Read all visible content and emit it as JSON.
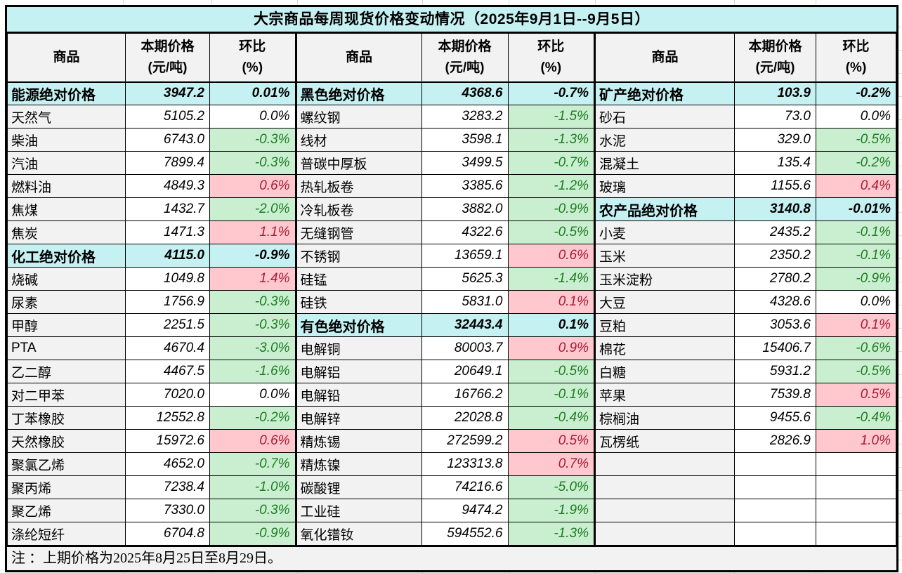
{
  "title": "大宗商品每周现货价格变动情况（2025年9月1日--9月5日）",
  "note": "注 ：上期价格为2025年8月25日至8月29日。",
  "columns": {
    "commodity": "商品",
    "price_line1": "本期价格",
    "price_line2": "(元/吨)",
    "pct_line1": "环比",
    "pct_line2": "(%)"
  },
  "colors": {
    "section_bg": "#c6f1f3",
    "header_bg": "#f2f2f2",
    "name_bg": "#f2f2f2",
    "up_bg": "#ffc7ce",
    "up_text": "#a61c35",
    "down_bg": "#c9efd0",
    "down_text": "#1e7b22"
  },
  "groups": [
    {
      "rows": [
        {
          "name": "能源绝对价格",
          "price": "3947.2",
          "pct": "0.01%",
          "type": "section"
        },
        {
          "name": "天然气",
          "price": "5105.2",
          "pct": "0.0%",
          "type": "flat"
        },
        {
          "name": "柴油",
          "price": "6743.0",
          "pct": "-0.3%",
          "type": "down"
        },
        {
          "name": "汽油",
          "price": "7899.4",
          "pct": "-0.3%",
          "type": "down"
        },
        {
          "name": "燃料油",
          "price": "4849.3",
          "pct": "0.6%",
          "type": "up"
        },
        {
          "name": "焦煤",
          "price": "1432.7",
          "pct": "-2.0%",
          "type": "down"
        },
        {
          "name": "焦炭",
          "price": "1471.3",
          "pct": "1.1%",
          "type": "up"
        },
        {
          "name": "化工绝对价格",
          "price": "4115.0",
          "pct": "-0.9%",
          "type": "section"
        },
        {
          "name": "烧碱",
          "price": "1049.8",
          "pct": "1.4%",
          "type": "up"
        },
        {
          "name": "尿素",
          "price": "1756.9",
          "pct": "-0.3%",
          "type": "down"
        },
        {
          "name": "甲醇",
          "price": "2251.5",
          "pct": "-0.3%",
          "type": "down"
        },
        {
          "name": "PTA",
          "price": "4670.4",
          "pct": "-3.0%",
          "type": "down"
        },
        {
          "name": "乙二醇",
          "price": "4467.5",
          "pct": "-1.6%",
          "type": "down"
        },
        {
          "name": "对二甲苯",
          "price": "7020.0",
          "pct": "0.0%",
          "type": "flat"
        },
        {
          "name": "丁苯橡胶",
          "price": "12552.8",
          "pct": "-0.2%",
          "type": "down"
        },
        {
          "name": "天然橡胶",
          "price": "15972.6",
          "pct": "0.6%",
          "type": "up"
        },
        {
          "name": "聚氯乙烯",
          "price": "4652.0",
          "pct": "-0.7%",
          "type": "down"
        },
        {
          "name": "聚丙烯",
          "price": "7238.4",
          "pct": "-1.0%",
          "type": "down"
        },
        {
          "name": "聚乙烯",
          "price": "7330.0",
          "pct": "-0.3%",
          "type": "down"
        },
        {
          "name": "涤纶短纤",
          "price": "6704.8",
          "pct": "-0.9%",
          "type": "down"
        }
      ]
    },
    {
      "rows": [
        {
          "name": "黑色绝对价格",
          "price": "4368.6",
          "pct": "-0.7%",
          "type": "section"
        },
        {
          "name": "螺纹钢",
          "price": "3283.2",
          "pct": "-1.5%",
          "type": "down"
        },
        {
          "name": "线材",
          "price": "3598.1",
          "pct": "-1.3%",
          "type": "down"
        },
        {
          "name": "普碳中厚板",
          "price": "3499.5",
          "pct": "-0.7%",
          "type": "down"
        },
        {
          "name": "热轧板卷",
          "price": "3385.6",
          "pct": "-1.2%",
          "type": "down"
        },
        {
          "name": "冷轧板卷",
          "price": "3882.0",
          "pct": "-0.9%",
          "type": "down"
        },
        {
          "name": "无缝钢管",
          "price": "4322.6",
          "pct": "-0.5%",
          "type": "down"
        },
        {
          "name": "不锈钢",
          "price": "13659.1",
          "pct": "0.6%",
          "type": "up"
        },
        {
          "name": "硅锰",
          "price": "5625.3",
          "pct": "-1.4%",
          "type": "down"
        },
        {
          "name": "硅铁",
          "price": "5831.0",
          "pct": "0.1%",
          "type": "up"
        },
        {
          "name": "有色绝对价格",
          "price": "32443.4",
          "pct": "0.1%",
          "type": "section"
        },
        {
          "name": "电解铜",
          "price": "80003.7",
          "pct": "0.9%",
          "type": "up"
        },
        {
          "name": "电解铝",
          "price": "20649.1",
          "pct": "-0.5%",
          "type": "down"
        },
        {
          "name": "电解铅",
          "price": "16766.2",
          "pct": "-0.1%",
          "type": "down"
        },
        {
          "name": "电解锌",
          "price": "22028.8",
          "pct": "-0.4%",
          "type": "down"
        },
        {
          "name": "精炼锡",
          "price": "272599.2",
          "pct": "0.5%",
          "type": "up"
        },
        {
          "name": "精炼镍",
          "price": "123313.8",
          "pct": "0.7%",
          "type": "up"
        },
        {
          "name": "碳酸锂",
          "price": "74216.6",
          "pct": "-5.0%",
          "type": "down"
        },
        {
          "name": "工业硅",
          "price": "9474.2",
          "pct": "-1.9%",
          "type": "down"
        },
        {
          "name": "氧化镨钕",
          "price": "594552.6",
          "pct": "-1.3%",
          "type": "down"
        }
      ]
    },
    {
      "rows": [
        {
          "name": "矿产绝对价格",
          "price": "103.9",
          "pct": "-0.2%",
          "type": "section"
        },
        {
          "name": "砂石",
          "price": "73.0",
          "pct": "0.0%",
          "type": "flat"
        },
        {
          "name": "水泥",
          "price": "329.0",
          "pct": "-0.5%",
          "type": "down"
        },
        {
          "name": "混凝土",
          "price": "135.4",
          "pct": "-0.2%",
          "type": "down"
        },
        {
          "name": "玻璃",
          "price": "1155.6",
          "pct": "0.4%",
          "type": "up"
        },
        {
          "name": "农产品绝对价格",
          "price": "3140.8",
          "pct": "-0.01%",
          "type": "section"
        },
        {
          "name": "小麦",
          "price": "2435.2",
          "pct": "-0.1%",
          "type": "down"
        },
        {
          "name": "玉米",
          "price": "2350.2",
          "pct": "-0.1%",
          "type": "down"
        },
        {
          "name": "玉米淀粉",
          "price": "2780.2",
          "pct": "-0.9%",
          "type": "down"
        },
        {
          "name": "大豆",
          "price": "4328.6",
          "pct": "0.0%",
          "type": "flat"
        },
        {
          "name": "豆粕",
          "price": "3053.6",
          "pct": "0.1%",
          "type": "up"
        },
        {
          "name": "棉花",
          "price": "15406.7",
          "pct": "-0.6%",
          "type": "down"
        },
        {
          "name": "白糖",
          "price": "5931.2",
          "pct": "-0.5%",
          "type": "down"
        },
        {
          "name": "苹果",
          "price": "7539.8",
          "pct": "0.5%",
          "type": "up"
        },
        {
          "name": "棕榈油",
          "price": "9455.6",
          "pct": "-0.4%",
          "type": "down"
        },
        {
          "name": "瓦楞纸",
          "price": "2826.9",
          "pct": "1.0%",
          "type": "up"
        },
        {
          "name": "",
          "price": "",
          "pct": "",
          "type": "empty"
        },
        {
          "name": "",
          "price": "",
          "pct": "",
          "type": "empty"
        },
        {
          "name": "",
          "price": "",
          "pct": "",
          "type": "empty"
        },
        {
          "name": "",
          "price": "",
          "pct": "",
          "type": "empty"
        }
      ]
    }
  ]
}
